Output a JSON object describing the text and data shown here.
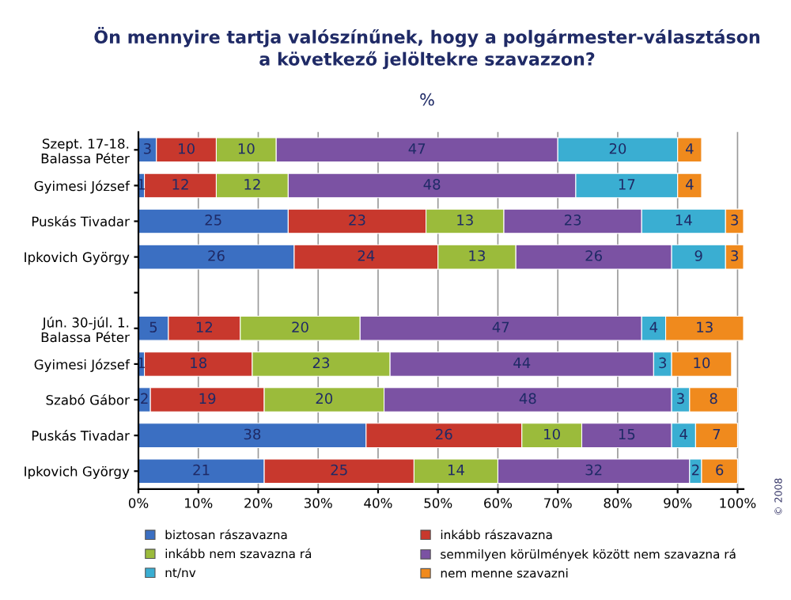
{
  "chart_data": {
    "type": "bar",
    "orientation": "horizontal",
    "stacked": true,
    "title": "Ön mennyire tartja valószínűnek, hogy a polgármester-választáson\na következő jelöltekre szavazzon?",
    "subtitle": "%",
    "categories": [
      "Szept. 17-18.\nBalassa Péter",
      "Gyimesi József",
      "Puskás Tivadar",
      "Ipkovich György",
      null,
      "Jún. 30-júl. 1.\nBalassa Péter",
      "Gyimesi József",
      "Szabó Gábor",
      "Puskás Tivadar",
      "Ipkovich György"
    ],
    "series": [
      {
        "name": "biztosan rászavazna",
        "color": "#3b6fc2",
        "values": [
          3,
          1,
          25,
          26,
          null,
          5,
          1,
          2,
          38,
          21
        ]
      },
      {
        "name": "inkább rászavazna",
        "color": "#c8382d",
        "values": [
          10,
          12,
          23,
          24,
          null,
          12,
          18,
          19,
          26,
          25
        ]
      },
      {
        "name": "inkább nem szavazna rá",
        "color": "#9bbb3b",
        "values": [
          10,
          12,
          13,
          13,
          null,
          20,
          23,
          20,
          10,
          14
        ]
      },
      {
        "name": "semmilyen körülmények között nem szavazna rá",
        "color": "#7b52a3",
        "values": [
          47,
          48,
          23,
          26,
          null,
          47,
          44,
          48,
          15,
          32
        ]
      },
      {
        "name": "nt/nv",
        "color": "#3aaed2",
        "values": [
          20,
          17,
          14,
          9,
          null,
          4,
          3,
          3,
          4,
          2
        ]
      },
      {
        "name": "nem menne szavazni",
        "color": "#f08a1d",
        "values": [
          4,
          4,
          3,
          3,
          null,
          13,
          10,
          8,
          7,
          6
        ]
      }
    ],
    "xlim": [
      0,
      101
    ],
    "xticks": [
      {
        "value": 0,
        "label": "0%"
      },
      {
        "value": 10,
        "label": "10%"
      },
      {
        "value": 20,
        "label": "20%"
      },
      {
        "value": 30,
        "label": "30%"
      },
      {
        "value": 40,
        "label": "40%"
      },
      {
        "value": 50,
        "label": "50%"
      },
      {
        "value": 60,
        "label": "60%"
      },
      {
        "value": 70,
        "label": "70%"
      },
      {
        "value": 80,
        "label": "80%"
      },
      {
        "value": 90,
        "label": "90%"
      },
      {
        "value": 100,
        "label": "100%"
      }
    ],
    "grid": "x",
    "legend": "bottom",
    "data_labels": true,
    "annotations": [
      "© 2008"
    ]
  }
}
